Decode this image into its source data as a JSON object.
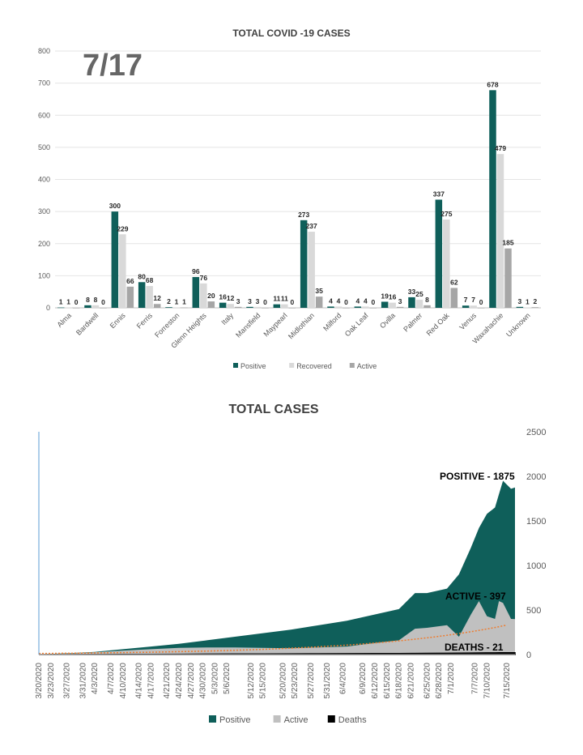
{
  "chart_data": [
    {
      "type": "bar",
      "title": "TOTAL COVID -19 CASES",
      "date_label": "7/17",
      "categories": [
        "Alma",
        "Bardwell",
        "Ennis",
        "Ferris",
        "Forreston",
        "Glenn Heights",
        "Italy",
        "Mansfield",
        "Maypearl",
        "Midlothian",
        "Milford",
        "Oak Leaf",
        "Ovilla",
        "Palmer",
        "Red Oak",
        "Venus",
        "Waxahachie",
        "Unknown"
      ],
      "series": [
        {
          "name": "Positive",
          "color": "#0f5f5a",
          "values": [
            1,
            8,
            300,
            80,
            2,
            96,
            16,
            3,
            11,
            273,
            4,
            4,
            19,
            33,
            337,
            7,
            678,
            3
          ]
        },
        {
          "name": "Recovered",
          "color": "#d9d9d9",
          "values": [
            1,
            8,
            229,
            68,
            1,
            76,
            12,
            3,
            11,
            237,
            4,
            4,
            16,
            25,
            275,
            7,
            479,
            1
          ]
        },
        {
          "name": "Active",
          "color": "#a6a6a6",
          "values": [
            0,
            0,
            66,
            12,
            1,
            20,
            3,
            0,
            0,
            35,
            0,
            0,
            3,
            8,
            62,
            0,
            185,
            2
          ]
        }
      ],
      "ylim": [
        0,
        800
      ],
      "yticks": [
        0,
        100,
        200,
        300,
        400,
        500,
        600,
        700,
        800
      ],
      "xlabel": "",
      "ylabel": "",
      "grid": true,
      "legend": "bottom"
    },
    {
      "type": "area",
      "title": "TOTAL CASES",
      "x_tick_labels": [
        "3/20/2020",
        "3/23/2020",
        "3/27/2020",
        "3/31/2020",
        "4/3/2020",
        "4/7/2020",
        "4/10/2020",
        "4/14/2020",
        "4/17/2020",
        "4/21/2020",
        "4/24/2020",
        "4/27/2020",
        "4/30/2020",
        "5/3/2020",
        "5/6/2020",
        "5/12/2020",
        "5/15/2020",
        "5/20/2020",
        "5/23/2020",
        "5/27/2020",
        "5/31/2020",
        "6/4/2020",
        "6/9/2020",
        "6/12/2020",
        "6/15/2020",
        "6/18/2020",
        "6/21/2020",
        "6/25/2020",
        "6/28/2020",
        "7/1/2020",
        "7/7/2020",
        "7/10/2020",
        "7/15/2020"
      ],
      "x": [
        "3/20",
        "3/27",
        "4/3",
        "4/10",
        "4/17",
        "4/24",
        "5/1",
        "5/8",
        "5/15",
        "5/22",
        "5/29",
        "6/5",
        "6/12",
        "6/18",
        "6/22",
        "6/25",
        "6/30",
        "7/3",
        "7/6",
        "7/8",
        "7/10",
        "7/12",
        "7/13",
        "7/14",
        "7/16",
        "7/17"
      ],
      "series": [
        {
          "name": "Positive",
          "color": "#0f5f5a",
          "values": [
            2,
            15,
            30,
            60,
            90,
            120,
            160,
            200,
            240,
            280,
            330,
            380,
            450,
            510,
            690,
            690,
            740,
            900,
            1200,
            1420,
            1580,
            1650,
            1800,
            1950,
            1860,
            1875
          ]
        },
        {
          "name": "Active",
          "color": "#c0c0c0",
          "values": [
            1,
            10,
            25,
            45,
            60,
            75,
            80,
            80,
            75,
            70,
            80,
            90,
            130,
            160,
            290,
            300,
            330,
            200,
            450,
            600,
            430,
            400,
            600,
            580,
            400,
            397
          ]
        },
        {
          "name": "Deaths",
          "color": "#000000",
          "values": [
            0,
            0,
            1,
            2,
            3,
            4,
            5,
            6,
            7,
            8,
            9,
            10,
            11,
            12,
            13,
            14,
            15,
            16,
            17,
            18,
            19,
            19,
            20,
            20,
            21,
            21
          ]
        }
      ],
      "trend_color": "#ed7d31",
      "ylim": [
        0,
        2500
      ],
      "yticks": [
        0,
        500,
        1000,
        1500,
        2000,
        2500
      ],
      "y_axis_side": "right",
      "annotations": [
        {
          "text": "POSITIVE - 1875"
        },
        {
          "text": "ACTIVE - 397"
        },
        {
          "text": "DEATHS - 21"
        }
      ],
      "xlabel": "",
      "ylabel": "",
      "legend": "bottom"
    }
  ]
}
